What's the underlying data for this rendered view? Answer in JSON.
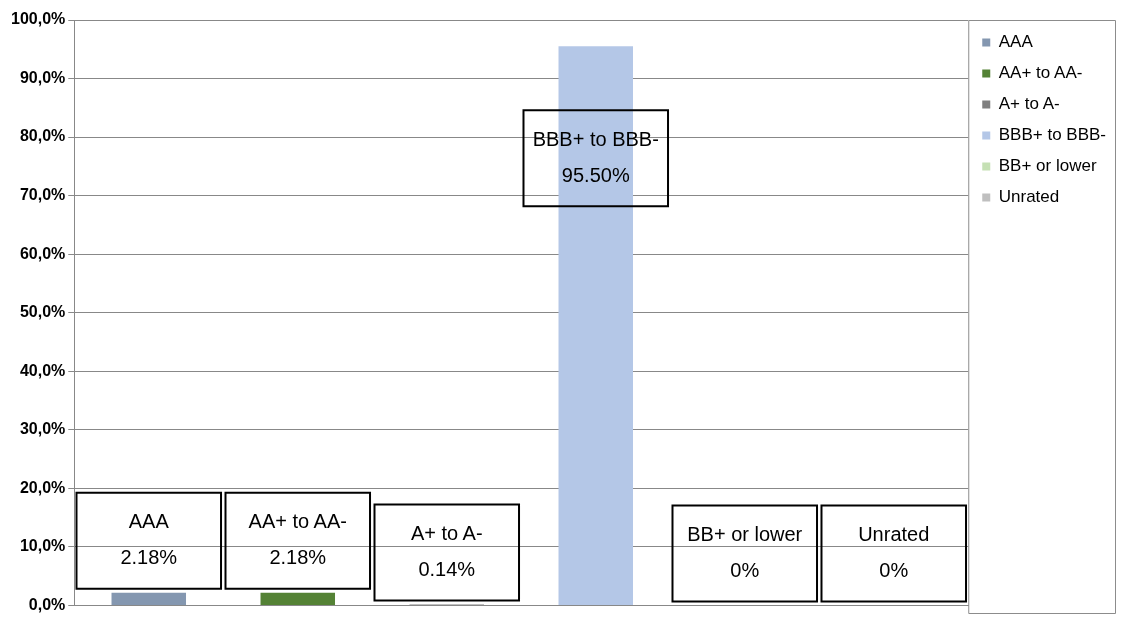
{
  "chart_data": {
    "type": "bar",
    "categories": [
      null,
      null,
      null,
      null,
      null,
      null
    ],
    "series": [
      {
        "name": "AAA",
        "color": "#8497b0",
        "values": [
          2.18,
          null,
          null,
          null,
          null,
          null
        ],
        "value_labels": [
          "2.18%",
          null,
          null,
          null,
          null,
          null
        ]
      },
      {
        "name": "AA+ to AA-",
        "color": "#548235",
        "values": [
          null,
          2.18,
          null,
          null,
          null,
          null
        ],
        "value_labels": [
          null,
          "2.18%",
          null,
          null,
          null,
          null
        ]
      },
      {
        "name": "A+ to A-",
        "color": "#7f7f7f",
        "values": [
          null,
          null,
          0.14,
          null,
          null,
          null
        ],
        "value_labels": [
          null,
          null,
          "0.14%",
          null,
          null,
          null
        ]
      },
      {
        "name": "BBB+ to BBB-",
        "color": "#b4c7e7",
        "values": [
          null,
          null,
          null,
          95.5,
          null,
          null
        ],
        "value_labels": [
          null,
          null,
          null,
          "95.50%",
          null,
          null
        ]
      },
      {
        "name": "BB+ or lower",
        "color": "#c5e0b4",
        "values": [
          null,
          null,
          null,
          null,
          0,
          null
        ],
        "value_labels": [
          null,
          null,
          null,
          null,
          "0%",
          null
        ]
      },
      {
        "name": "Unrated",
        "color": "#bfbfbf",
        "values": [
          null,
          null,
          null,
          null,
          null,
          0
        ],
        "value_labels": [
          null,
          null,
          null,
          null,
          null,
          "0%"
        ]
      }
    ],
    "ylim": [
      0,
      100
    ],
    "yticks": [
      {
        "value": 0,
        "label": "0,0%"
      },
      {
        "value": 10,
        "label": "10,0%"
      },
      {
        "value": 20,
        "label": "20,0%"
      },
      {
        "value": 30,
        "label": "30,0%"
      },
      {
        "value": 40,
        "label": "40,0%"
      },
      {
        "value": 50,
        "label": "50,0%"
      },
      {
        "value": 60,
        "label": "60,0%"
      },
      {
        "value": 70,
        "label": "70,0%"
      },
      {
        "value": 80,
        "label": "80,0%"
      },
      {
        "value": 90,
        "label": "90,0%"
      },
      {
        "value": 100,
        "label": "100,0%"
      }
    ],
    "grid": "y",
    "legend": "top right"
  }
}
